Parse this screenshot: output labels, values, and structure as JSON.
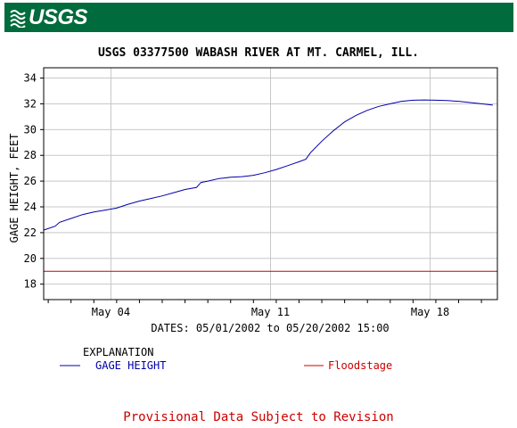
{
  "header": {
    "logo_text": "USGS",
    "background_color": "#006b3c"
  },
  "chart_data": {
    "type": "line",
    "title": "USGS 03377500 WABASH RIVER AT MT. CARMEL, ILL.",
    "ylabel": "GAGE HEIGHT, FEET",
    "xlabel": "DATES: 05/01/2002 to 05/20/2002 15:00",
    "ylim": [
      16.8,
      34.8
    ],
    "xlim_days": [
      0.8,
      20.7
    ],
    "y_ticks": [
      18,
      20,
      22,
      24,
      26,
      28,
      30,
      32,
      34
    ],
    "x_ticks": [
      {
        "day": 3.75,
        "label": "May 04"
      },
      {
        "day": 10.75,
        "label": "May 11"
      },
      {
        "day": 17.75,
        "label": "May 18"
      }
    ],
    "grid": true,
    "series": [
      {
        "name": "GAGE HEIGHT",
        "color": "#0000aa",
        "x_days": [
          0.8,
          1.3,
          1.5,
          2.0,
          2.5,
          3.0,
          3.5,
          4.0,
          4.5,
          5.0,
          5.5,
          6.0,
          6.5,
          7.0,
          7.3,
          7.5,
          7.7,
          8.0,
          8.5,
          9.0,
          9.5,
          10.0,
          10.5,
          11.0,
          11.5,
          12.0,
          12.3,
          12.5,
          13.0,
          13.5,
          14.0,
          14.5,
          15.0,
          15.5,
          16.0,
          16.5,
          17.0,
          17.5,
          18.0,
          18.5,
          19.0,
          19.5,
          20.0,
          20.5
        ],
        "values": [
          22.2,
          22.5,
          22.8,
          23.1,
          23.4,
          23.6,
          23.75,
          23.9,
          24.2,
          24.45,
          24.65,
          24.85,
          25.1,
          25.35,
          25.45,
          25.5,
          25.9,
          26.0,
          26.2,
          26.3,
          26.35,
          26.45,
          26.65,
          26.9,
          27.2,
          27.5,
          27.7,
          28.2,
          29.1,
          29.9,
          30.6,
          31.1,
          31.5,
          31.8,
          32.0,
          32.2,
          32.28,
          32.3,
          32.28,
          32.25,
          32.2,
          32.1,
          32.0,
          31.9
        ]
      },
      {
        "name": "Floodstage",
        "color": "#cc0000",
        "constant": 19.0
      }
    ]
  },
  "legend": {
    "title": "EXPLANATION",
    "items": [
      {
        "label": "GAGE HEIGHT",
        "color": "#0000aa"
      },
      {
        "label": "Floodstage",
        "color": "#cc0000"
      }
    ]
  },
  "footer": {
    "text": "Provisional Data Subject to Revision",
    "color": "#cc0000"
  }
}
